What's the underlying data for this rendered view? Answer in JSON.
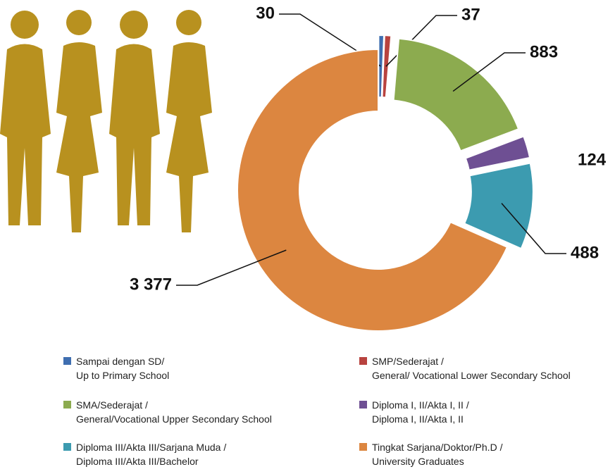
{
  "chart_data": {
    "type": "donut",
    "categories": [
      "Sampai dengan SD/\nUp to Primary School",
      "SMP/Sederajat /\nGeneral/ Vocational Lower Secondary School",
      "SMA/Sederajat /\nGeneral/Vocational Upper Secondary School",
      "Diploma I, II/Akta I, II /\nDiploma I, II/Akta I, II",
      "Diploma III/Akta III/Sarjana Muda /\nDiploma III/Akta III/Bachelor",
      "Tingkat Sarjana/Doktor/Ph.D /\nUniversity Graduates"
    ],
    "values": [
      30,
      37,
      883,
      124,
      488,
      3377
    ],
    "value_labels": [
      "30",
      "37",
      "883",
      "124",
      "488",
      "3 377"
    ],
    "colors": [
      "#3f6eb0",
      "#b8433f",
      "#8cab4f",
      "#6e4f93",
      "#3c9bb0",
      "#dc8640"
    ]
  }
}
